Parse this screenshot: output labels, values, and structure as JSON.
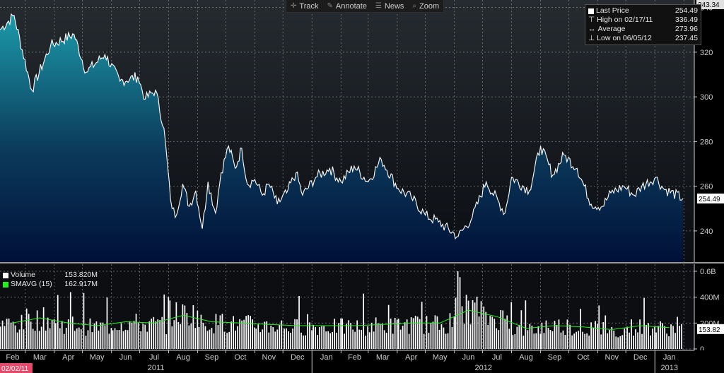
{
  "toolbar": {
    "track": "Track",
    "annotate": "Annotate",
    "news": "News",
    "zoom": "Zoom",
    "icons": [
      "crosshair-icon",
      "pencil-icon",
      "newspaper-icon",
      "magnifier-icon"
    ]
  },
  "legend": {
    "last_price_label": "Last Price",
    "last_price_value": "254.49",
    "high_label": "High on 02/17/11",
    "high_value": "336.49",
    "average_label": "Average",
    "average_value": "273.96",
    "low_label": "Low on 06/05/12",
    "low_value": "237.45"
  },
  "volume_legend": {
    "volume_label": "Volume",
    "volume_value": "153.820M",
    "smavg_label": "SMAVG (15)",
    "smavg_value": "162.917M"
  },
  "price_axis": {
    "ticks": [
      "340",
      "320",
      "300",
      "280",
      "260",
      "240"
    ],
    "top_label": "343.34",
    "last_label": "254.49"
  },
  "volume_axis": {
    "ticks": [
      "0.6B",
      "400M",
      "200M",
      "0"
    ],
    "last_label": "153.82"
  },
  "x_axis": {
    "months": [
      "Feb",
      "Mar",
      "Apr",
      "May",
      "Jun",
      "Jul",
      "Aug",
      "Sep",
      "Oct",
      "Nov",
      "Dec",
      "Jan",
      "Feb",
      "Mar",
      "Apr",
      "May",
      "Jun",
      "Jul",
      "Aug",
      "Sep",
      "Oct",
      "Nov",
      "Dec",
      "Jan"
    ],
    "years": [
      "2011",
      "2012",
      "2013"
    ],
    "start_date": "02/02/11"
  },
  "colors": {
    "background": "#000000",
    "plot_bg": "#1e2328",
    "price_line": "#ffffff",
    "area_top": "#1a9fb0",
    "area_bottom": "#00103a",
    "volume_bar": "#ffffff",
    "smavg_line": "#22ee22",
    "grid": "#7a7a7a",
    "axis_text": "#cccccc",
    "date_box": "#e64a6a"
  },
  "chart_data": [
    {
      "type": "area",
      "name": "Last Price",
      "x_start": "2011-02-02",
      "x_end": "2013-01-31",
      "ylim": [
        227,
        343.34
      ],
      "yticks": [
        240,
        260,
        280,
        300,
        320,
        340
      ],
      "grid": true,
      "legend": "top-right",
      "x": [
        "2011-02-02",
        "2011-02-17",
        "2011-03-08",
        "2011-03-28",
        "2011-04-22",
        "2011-05-05",
        "2011-05-25",
        "2011-06-10",
        "2011-06-29",
        "2011-07-07",
        "2011-07-18",
        "2011-07-27",
        "2011-08-03",
        "2011-08-08",
        "2011-08-16",
        "2011-08-23",
        "2011-08-30",
        "2011-09-06",
        "2011-09-12",
        "2011-09-20",
        "2011-09-26",
        "2011-10-04",
        "2011-10-11",
        "2011-10-18",
        "2011-10-24",
        "2011-11-01",
        "2011-11-09",
        "2011-11-16",
        "2011-11-25",
        "2011-12-05",
        "2011-12-15",
        "2011-12-22",
        "2012-01-05",
        "2012-01-20",
        "2012-02-01",
        "2012-02-15",
        "2012-03-01",
        "2012-03-15",
        "2012-04-02",
        "2012-04-16",
        "2012-05-01",
        "2012-05-15",
        "2012-06-05",
        "2012-06-20",
        "2012-07-05",
        "2012-07-25",
        "2012-08-01",
        "2012-08-20",
        "2012-09-01",
        "2012-09-14",
        "2012-09-26",
        "2012-10-10",
        "2012-10-25",
        "2012-11-06",
        "2012-11-15",
        "2012-11-29",
        "2012-12-10",
        "2012-12-18",
        "2013-01-02",
        "2013-01-10",
        "2013-01-31"
      ],
      "y": [
        330,
        336.49,
        303,
        323,
        328,
        311,
        319,
        307,
        309,
        299,
        303,
        286,
        254,
        246,
        261,
        251,
        258,
        241,
        262,
        248,
        266,
        278,
        268,
        277,
        261,
        263,
        256,
        261,
        252,
        257,
        266,
        256,
        264,
        268,
        262,
        269,
        262,
        272,
        259,
        255,
        247,
        244,
        237.45,
        246,
        262,
        248,
        264,
        258,
        278,
        265,
        274,
        268,
        252,
        251,
        257,
        260,
        256,
        260,
        264,
        259,
        254.49
      ]
    },
    {
      "type": "bar",
      "name": "Volume",
      "ylim": [
        0,
        0.6
      ],
      "yticks": [
        0,
        0.2,
        0.4,
        0.6
      ],
      "x": [
        "2011-02",
        "2011-03",
        "2011-04",
        "2011-05",
        "2011-06",
        "2011-07",
        "2011-08",
        "2011-09",
        "2011-10",
        "2011-11",
        "2011-12",
        "2012-01",
        "2012-02",
        "2012-03",
        "2012-04",
        "2012-05",
        "2012-06",
        "2012-07",
        "2012-08",
        "2012-09",
        "2012-10",
        "2012-11",
        "2012-12",
        "2013-01"
      ],
      "values": [
        0.19,
        0.23,
        0.19,
        0.17,
        0.2,
        0.19,
        0.27,
        0.2,
        0.19,
        0.18,
        0.17,
        0.17,
        0.17,
        0.18,
        0.19,
        0.19,
        0.31,
        0.24,
        0.15,
        0.18,
        0.16,
        0.14,
        0.17,
        0.16
      ],
      "last_value": 0.15382
    },
    {
      "type": "line",
      "name": "SMAVG (15)",
      "x": [
        "2011-02",
        "2011-03",
        "2011-04",
        "2011-05",
        "2011-06",
        "2011-07",
        "2011-08",
        "2011-09",
        "2011-10",
        "2011-11",
        "2011-12",
        "2012-01",
        "2012-02",
        "2012-03",
        "2012-04",
        "2012-05",
        "2012-06",
        "2012-07",
        "2012-08",
        "2012-09",
        "2012-10",
        "2012-11",
        "2012-12",
        "2013-01"
      ],
      "values": [
        0.2,
        0.24,
        0.2,
        0.18,
        0.21,
        0.2,
        0.26,
        0.21,
        0.2,
        0.19,
        0.18,
        0.18,
        0.18,
        0.19,
        0.2,
        0.2,
        0.3,
        0.25,
        0.16,
        0.18,
        0.17,
        0.15,
        0.18,
        0.165
      ],
      "last_value": 0.162917
    }
  ]
}
